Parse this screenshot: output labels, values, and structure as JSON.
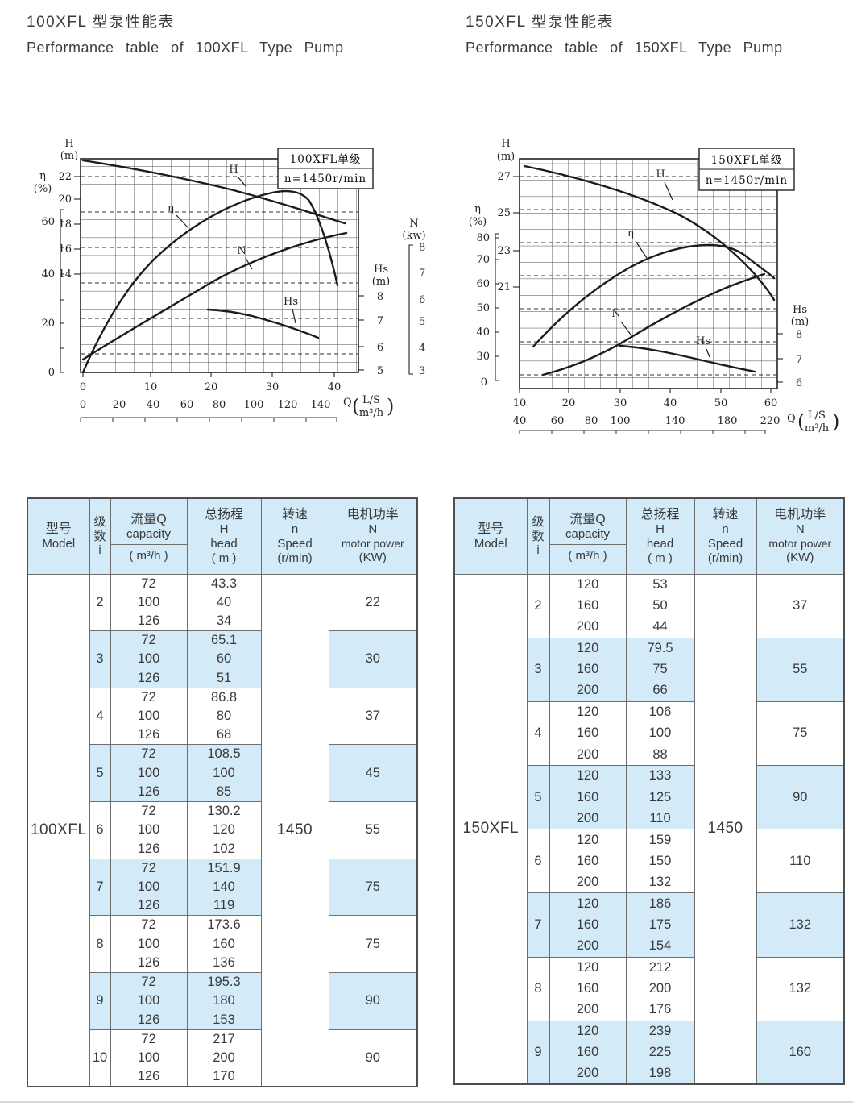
{
  "page": {
    "sections": [
      {
        "title_cn": "100XFL 型泵性能表",
        "title_en": "Performance table of 100XFL Type Pump"
      },
      {
        "title_cn": "150XFL 型泵性能表",
        "title_en": "Performance table of 150XFL Type Pump"
      }
    ],
    "colors": {
      "stripe_blue": "#d3ebf8",
      "border_gray": "#6e6e6e",
      "ink": "#3a3a3a"
    }
  },
  "charts": [
    {
      "box_model": "100XFL单级",
      "box_speed": "n=1450r/min",
      "h_label": "H",
      "h_unit": "(m)",
      "h_ticks": [
        "22",
        "20",
        "18",
        "16",
        "14"
      ],
      "eta_label": "η",
      "eta_unit": "(%)",
      "eta_ticks": [
        "60",
        "40",
        "20",
        "0"
      ],
      "hs_label": "Hs",
      "hs_unit": "(m)",
      "hs_ticks": [
        "8",
        "7",
        "6",
        "5"
      ],
      "n_label": "N",
      "n_unit": "(kw)",
      "n_ticks": [
        "8",
        "7",
        "6",
        "5",
        "4",
        "3"
      ],
      "x_ls_ticks": [
        "0",
        "10",
        "20",
        "30",
        "40"
      ],
      "x_m3h_ticks": [
        "0",
        "20",
        "40",
        "60",
        "80",
        "100",
        "120",
        "140"
      ],
      "q_label": "Q",
      "q_unit_top": "L/S",
      "q_unit_bottom": "m³/h",
      "curve_labels": {
        "h": "H",
        "eta": "η",
        "n": "N",
        "hs": "Hs"
      }
    },
    {
      "box_model": "150XFL单级",
      "box_speed": "n=1450r/min",
      "h_label": "H",
      "h_unit": "(m)",
      "h_ticks": [
        "27",
        "25",
        "23",
        "21"
      ],
      "eta_label": "η",
      "eta_unit": "(%)",
      "eta_ticks": [
        "80",
        "70",
        "60",
        "50",
        "40",
        "30",
        "0"
      ],
      "hs_label": "Hs",
      "hs_unit": "(m)",
      "hs_ticks": [
        "8",
        "7",
        "6"
      ],
      "x_ls_ticks": [
        "10",
        "20",
        "30",
        "40",
        "50",
        "60"
      ],
      "x_m3h_ticks": [
        "40",
        "60",
        "80",
        "100",
        "140",
        "180",
        "220"
      ],
      "q_label": "Q",
      "q_unit_top": "L/S",
      "q_unit_bottom": "m³/h",
      "curve_labels": {
        "h": "H",
        "eta": "η",
        "n": "N",
        "hs": "Hs"
      }
    }
  ],
  "chart_data": [
    {
      "type": "line",
      "title": "100XFL单级 n=1450r/min",
      "x_axis": {
        "label": "Q",
        "units": [
          "L/S",
          "m³/h"
        ],
        "ls_ticks": [
          0,
          10,
          20,
          30,
          40
        ],
        "m3h_ticks": [
          0,
          20,
          40,
          60,
          80,
          100,
          120,
          140
        ]
      },
      "y_axes": [
        {
          "label": "H",
          "unit": "m",
          "ticks": [
            22,
            20,
            18,
            16,
            14
          ]
        },
        {
          "label": "η",
          "unit": "%",
          "ticks": [
            60,
            40,
            20,
            0
          ]
        },
        {
          "label": "Hs",
          "unit": "m",
          "ticks": [
            8,
            7,
            6,
            5
          ]
        },
        {
          "label": "N",
          "unit": "kw",
          "ticks": [
            8,
            7,
            6,
            5,
            4,
            3
          ]
        }
      ],
      "series": [
        {
          "name": "H",
          "unit": "m",
          "points_q_ls": [
            [
              0,
              23.3
            ],
            [
              10,
              22.2
            ],
            [
              20,
              21.0
            ],
            [
              28,
              20.2
            ],
            [
              35,
              19.2
            ],
            [
              42,
              18.3
            ]
          ]
        },
        {
          "name": "η",
          "unit": "%",
          "points_q_ls": [
            [
              0,
              0
            ],
            [
              10,
              30
            ],
            [
              20,
              52
            ],
            [
              28,
              62
            ],
            [
              33,
              65
            ],
            [
              38,
              60
            ],
            [
              41,
              53
            ]
          ]
        },
        {
          "name": "N",
          "unit": "kw",
          "points_q_ls": [
            [
              0,
              3.2
            ],
            [
              10,
              4.3
            ],
            [
              20,
              5.5
            ],
            [
              30,
              6.6
            ],
            [
              37,
              7.3
            ],
            [
              41,
              7.5
            ]
          ]
        },
        {
          "name": "Hs",
          "unit": "m",
          "points_q_ls": [
            [
              19,
              7.3
            ],
            [
              25,
              7.1
            ],
            [
              30,
              6.8
            ],
            [
              35,
              6.5
            ],
            [
              38,
              6.3
            ]
          ]
        }
      ],
      "grid": true,
      "legend_position": "inline-labels"
    },
    {
      "type": "line",
      "title": "150XFL单级 n=1450r/min",
      "x_axis": {
        "label": "Q",
        "units": [
          "L/S",
          "m³/h"
        ],
        "ls_ticks": [
          10,
          20,
          30,
          40,
          50,
          60
        ],
        "m3h_ticks": [
          40,
          60,
          80,
          100,
          140,
          180,
          220
        ]
      },
      "y_axes": [
        {
          "label": "H",
          "unit": "m",
          "ticks": [
            27,
            25,
            23,
            21
          ]
        },
        {
          "label": "η",
          "unit": "%",
          "ticks": [
            80,
            70,
            60,
            50,
            40,
            30,
            0
          ]
        },
        {
          "label": "Hs",
          "unit": "m",
          "ticks": [
            8,
            7,
            6
          ]
        }
      ],
      "series": [
        {
          "name": "H",
          "unit": "m",
          "points_q_ls": [
            [
              11,
              28.2
            ],
            [
              20,
              27.3
            ],
            [
              30,
              26.1
            ],
            [
              40,
              24.4
            ],
            [
              50,
              22.1
            ],
            [
              57,
              20.0
            ],
            [
              61,
              18.2
            ]
          ]
        },
        {
          "name": "η",
          "unit": "%",
          "points_q_ls": [
            [
              12,
              35
            ],
            [
              20,
              52
            ],
            [
              30,
              64
            ],
            [
              40,
              72
            ],
            [
              45,
              75
            ],
            [
              50,
              74
            ],
            [
              57,
              70
            ],
            [
              61,
              64
            ]
          ]
        },
        {
          "name": "N",
          "unit": "unlabeled",
          "points_q_ls": [
            [
              14,
              31
            ],
            [
              25,
              41
            ],
            [
              35,
              52
            ],
            [
              45,
              59
            ],
            [
              57,
              65
            ]
          ]
        },
        {
          "name": "Hs",
          "unit": "m",
          "points_q_ls": [
            [
              32,
              7.5
            ],
            [
              40,
              7.2
            ],
            [
              48,
              6.8
            ],
            [
              57,
              6.5
            ]
          ]
        }
      ],
      "grid": true,
      "legend_position": "inline-labels"
    }
  ],
  "table_header": {
    "model_cn": "型号",
    "model_en": "Model",
    "stage": [
      "级",
      "数",
      "i"
    ],
    "cap_cn": "流量Q",
    "cap_en": "capacity",
    "cap_unit": "( m³/h )",
    "head_cn": "总扬程",
    "head_sym": "H",
    "head_en": "head",
    "head_unit": "( m )",
    "speed_cn": "转速",
    "speed_sym": "n",
    "speed_en": "Speed",
    "speed_unit": "(r/min)",
    "power_cn": "电机功率",
    "power_sym": "N",
    "power_en": "motor power",
    "power_unit": "(KW)"
  },
  "tables": [
    {
      "model": "100XFL",
      "speed": "1450",
      "groups": [
        {
          "i": "2",
          "q": [
            "72",
            "100",
            "126"
          ],
          "h": [
            "43.3",
            "40",
            "34"
          ],
          "power": "22"
        },
        {
          "i": "3",
          "q": [
            "72",
            "100",
            "126"
          ],
          "h": [
            "65.1",
            "60",
            "51"
          ],
          "power": "30"
        },
        {
          "i": "4",
          "q": [
            "72",
            "100",
            "126"
          ],
          "h": [
            "86.8",
            "80",
            "68"
          ],
          "power": "37"
        },
        {
          "i": "5",
          "q": [
            "72",
            "100",
            "126"
          ],
          "h": [
            "108.5",
            "100",
            "85"
          ],
          "power": "45"
        },
        {
          "i": "6",
          "q": [
            "72",
            "100",
            "126"
          ],
          "h": [
            "130.2",
            "120",
            "102"
          ],
          "power": "55"
        },
        {
          "i": "7",
          "q": [
            "72",
            "100",
            "126"
          ],
          "h": [
            "151.9",
            "140",
            "119"
          ],
          "power": "75"
        },
        {
          "i": "8",
          "q": [
            "72",
            "100",
            "126"
          ],
          "h": [
            "173.6",
            "160",
            "136"
          ],
          "power": "75"
        },
        {
          "i": "9",
          "q": [
            "72",
            "100",
            "126"
          ],
          "h": [
            "195.3",
            "180",
            "153"
          ],
          "power": "90"
        },
        {
          "i": "10",
          "q": [
            "72",
            "100",
            "126"
          ],
          "h": [
            "217",
            "200",
            "170"
          ],
          "power": "90"
        }
      ]
    },
    {
      "model": "150XFL",
      "speed": "1450",
      "groups": [
        {
          "i": "2",
          "q": [
            "120",
            "160",
            "200"
          ],
          "h": [
            "53",
            "50",
            "44"
          ],
          "power": "37"
        },
        {
          "i": "3",
          "q": [
            "120",
            "160",
            "200"
          ],
          "h": [
            "79.5",
            "75",
            "66"
          ],
          "power": "55"
        },
        {
          "i": "4",
          "q": [
            "120",
            "160",
            "200"
          ],
          "h": [
            "106",
            "100",
            "88"
          ],
          "power": "75"
        },
        {
          "i": "5",
          "q": [
            "120",
            "160",
            "200"
          ],
          "h": [
            "133",
            "125",
            "110"
          ],
          "power": "90"
        },
        {
          "i": "6",
          "q": [
            "120",
            "160",
            "200"
          ],
          "h": [
            "159",
            "150",
            "132"
          ],
          "power": "110"
        },
        {
          "i": "7",
          "q": [
            "120",
            "160",
            "200"
          ],
          "h": [
            "186",
            "175",
            "154"
          ],
          "power": "132"
        },
        {
          "i": "8",
          "q": [
            "120",
            "160",
            "200"
          ],
          "h": [
            "212",
            "200",
            "176"
          ],
          "power": "132"
        },
        {
          "i": "9",
          "q": [
            "120",
            "160",
            "200"
          ],
          "h": [
            "239",
            "225",
            "198"
          ],
          "power": "160"
        }
      ]
    }
  ]
}
